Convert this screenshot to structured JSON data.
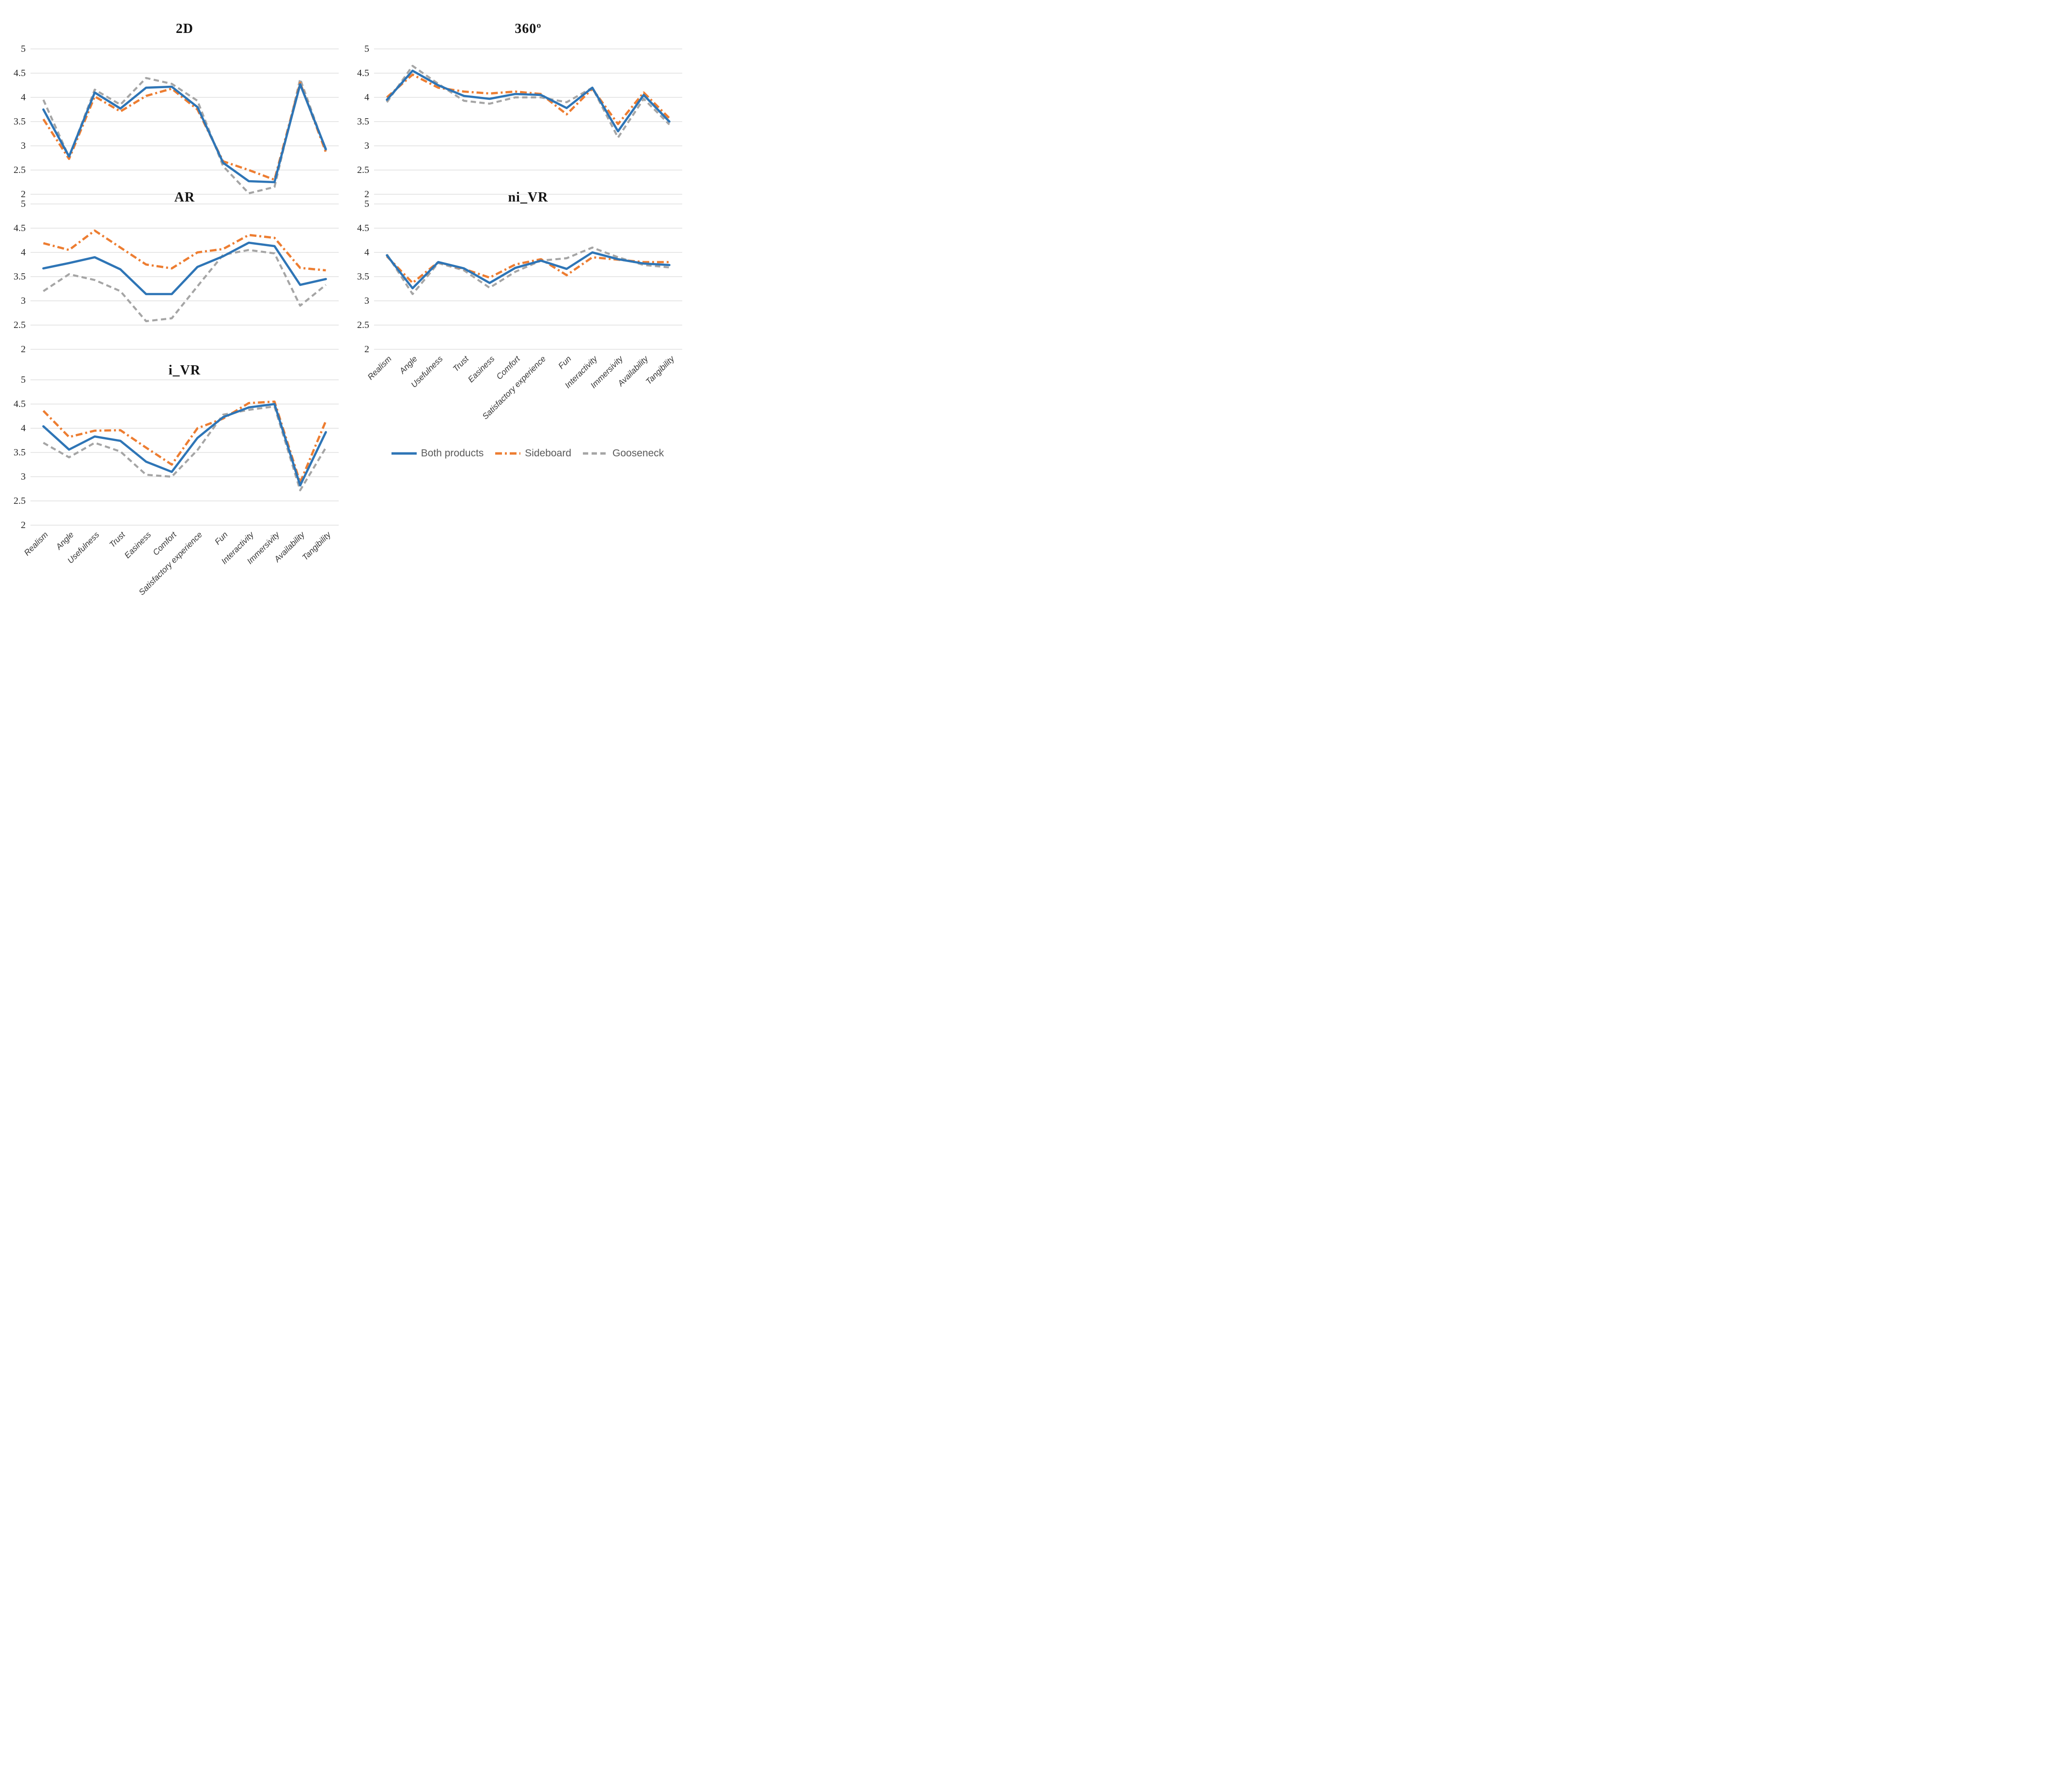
{
  "colors": {
    "both": "#2E75B6",
    "sideboard": "#ED7D31",
    "gooseneck": "#A5A5A5",
    "grid": "#D9D9D9",
    "title_text": "#141414",
    "tick_text": "#262626",
    "category_text": "#363636",
    "legend_text": "#595959",
    "background": "#FFFFFF"
  },
  "legend": {
    "items": [
      {
        "label": "Both products",
        "series": "both"
      },
      {
        "label": "Sideboard",
        "series": "sideboard"
      },
      {
        "label": "Gooseneck",
        "series": "gooseneck"
      }
    ]
  },
  "chart_data": [
    {
      "type": "line",
      "title": "2D",
      "x_labels_visible": false,
      "ylim": [
        2,
        5
      ],
      "grid": true,
      "y_ticks": [
        "5",
        "4.5",
        "4",
        "3.5",
        "3",
        "2.5",
        "2"
      ],
      "categories": [
        "Realism",
        "Angle",
        "Usefulness",
        "Trust",
        "Easiness",
        "Comfort",
        "Satisfactory experience",
        "Fun",
        "Interactivity",
        "Immersivity",
        "Availability",
        "Tangibility"
      ],
      "series": [
        {
          "name": "Both products",
          "key": "both",
          "values": [
            3.75,
            2.78,
            4.1,
            3.77,
            4.2,
            4.22,
            3.8,
            2.65,
            2.27,
            2.25,
            4.27,
            2.93
          ]
        },
        {
          "name": "Sideboard",
          "key": "sideboard",
          "values": [
            3.55,
            2.73,
            4.02,
            3.71,
            4.03,
            4.18,
            3.75,
            2.68,
            2.5,
            2.3,
            4.3,
            2.87
          ]
        },
        {
          "name": "Gooseneck",
          "key": "gooseneck",
          "values": [
            3.95,
            2.77,
            4.16,
            3.85,
            4.4,
            4.28,
            3.93,
            2.58,
            2.02,
            2.15,
            4.38,
            2.9
          ]
        }
      ]
    },
    {
      "type": "line",
      "title": "360º",
      "x_labels_visible": false,
      "ylim": [
        2,
        5
      ],
      "grid": true,
      "y_ticks": [
        "5",
        "4.5",
        "4",
        "3.5",
        "3",
        "2.5",
        "2"
      ],
      "categories": [
        "Realism",
        "Angle",
        "Usefulness",
        "Trust",
        "Easiness",
        "Comfort",
        "Satisfactory experience",
        "Fun",
        "Interactivity",
        "Immersivity",
        "Availability",
        "Tangibility"
      ],
      "series": [
        {
          "name": "Both products",
          "key": "both",
          "values": [
            3.95,
            4.55,
            4.25,
            4.03,
            3.97,
            4.07,
            4.05,
            3.78,
            4.2,
            3.3,
            4.05,
            3.5
          ]
        },
        {
          "name": "Sideboard",
          "key": "sideboard",
          "values": [
            4.0,
            4.47,
            4.2,
            4.12,
            4.08,
            4.12,
            4.07,
            3.65,
            4.18,
            3.45,
            4.1,
            3.57
          ]
        },
        {
          "name": "Gooseneck",
          "key": "gooseneck",
          "values": [
            3.9,
            4.65,
            4.28,
            3.93,
            3.87,
            4.0,
            4.0,
            3.9,
            4.2,
            3.17,
            3.97,
            3.44
          ]
        }
      ]
    },
    {
      "type": "line",
      "title": "AR",
      "x_labels_visible": false,
      "ylim": [
        2,
        5
      ],
      "grid": true,
      "y_ticks": [
        "5",
        "4.5",
        "4",
        "3.5",
        "3",
        "2.5",
        "2"
      ],
      "categories": [
        "Realism",
        "Angle",
        "Usefulness",
        "Trust",
        "Easiness",
        "Comfort",
        "Satisfactory experience",
        "Fun",
        "Interactivity",
        "Immersivity",
        "Availability",
        "Tangibility"
      ],
      "series": [
        {
          "name": "Both products",
          "key": "both",
          "values": [
            3.67,
            3.78,
            3.9,
            3.65,
            3.14,
            3.14,
            3.7,
            3.92,
            4.2,
            4.13,
            3.33,
            3.45
          ]
        },
        {
          "name": "Sideboard",
          "key": "sideboard",
          "values": [
            4.19,
            4.05,
            4.45,
            4.1,
            3.75,
            3.67,
            4.0,
            4.07,
            4.36,
            4.3,
            3.68,
            3.63
          ]
        },
        {
          "name": "Gooseneck",
          "key": "gooseneck",
          "values": [
            3.2,
            3.55,
            3.43,
            3.2,
            2.58,
            2.64,
            3.3,
            3.95,
            4.05,
            3.98,
            2.9,
            3.33
          ]
        }
      ]
    },
    {
      "type": "line",
      "title": "ni_VR",
      "x_labels_visible": true,
      "ylim": [
        2,
        5
      ],
      "grid": true,
      "y_ticks": [
        "5",
        "4.5",
        "4",
        "3.5",
        "3",
        "2.5",
        "2"
      ],
      "categories": [
        "Realism",
        "Angle",
        "Usefulness",
        "Trust",
        "Easiness",
        "Comfort",
        "Satisfactory experience",
        "Fun",
        "Interactivity",
        "Immersivity",
        "Availability",
        "Tangibility"
      ],
      "series": [
        {
          "name": "Both products",
          "key": "both",
          "values": [
            3.94,
            3.26,
            3.8,
            3.67,
            3.37,
            3.68,
            3.83,
            3.66,
            4.0,
            3.86,
            3.77,
            3.74
          ]
        },
        {
          "name": "Sideboard",
          "key": "sideboard",
          "values": [
            3.92,
            3.37,
            3.8,
            3.66,
            3.48,
            3.75,
            3.86,
            3.53,
            3.9,
            3.85,
            3.8,
            3.8
          ]
        },
        {
          "name": "Gooseneck",
          "key": "gooseneck",
          "values": [
            3.96,
            3.14,
            3.78,
            3.63,
            3.27,
            3.6,
            3.83,
            3.88,
            4.1,
            3.9,
            3.74,
            3.69
          ]
        }
      ]
    },
    {
      "type": "line",
      "title": "i_VR",
      "x_labels_visible": true,
      "ylim": [
        2,
        5
      ],
      "grid": true,
      "y_ticks": [
        "5",
        "4.5",
        "4",
        "3.5",
        "3",
        "2.5",
        "2"
      ],
      "categories": [
        "Realism",
        "Angle",
        "Usefulness",
        "Trust",
        "Easiness",
        "Comfort",
        "Satisfactory experience",
        "Fun",
        "Interactivity",
        "Immersivity",
        "Availability",
        "Tangibility"
      ],
      "series": [
        {
          "name": "Both products",
          "key": "both",
          "values": [
            4.04,
            3.56,
            3.83,
            3.74,
            3.31,
            3.1,
            3.8,
            4.23,
            4.43,
            4.5,
            2.82,
            3.92
          ]
        },
        {
          "name": "Sideboard",
          "key": "sideboard",
          "values": [
            4.36,
            3.82,
            3.95,
            3.96,
            3.6,
            3.25,
            4.0,
            4.2,
            4.52,
            4.55,
            2.88,
            4.15
          ]
        },
        {
          "name": "Gooseneck",
          "key": "gooseneck",
          "values": [
            3.7,
            3.4,
            3.7,
            3.52,
            3.04,
            3.0,
            3.55,
            4.28,
            4.38,
            4.45,
            2.72,
            3.6
          ]
        }
      ]
    }
  ]
}
